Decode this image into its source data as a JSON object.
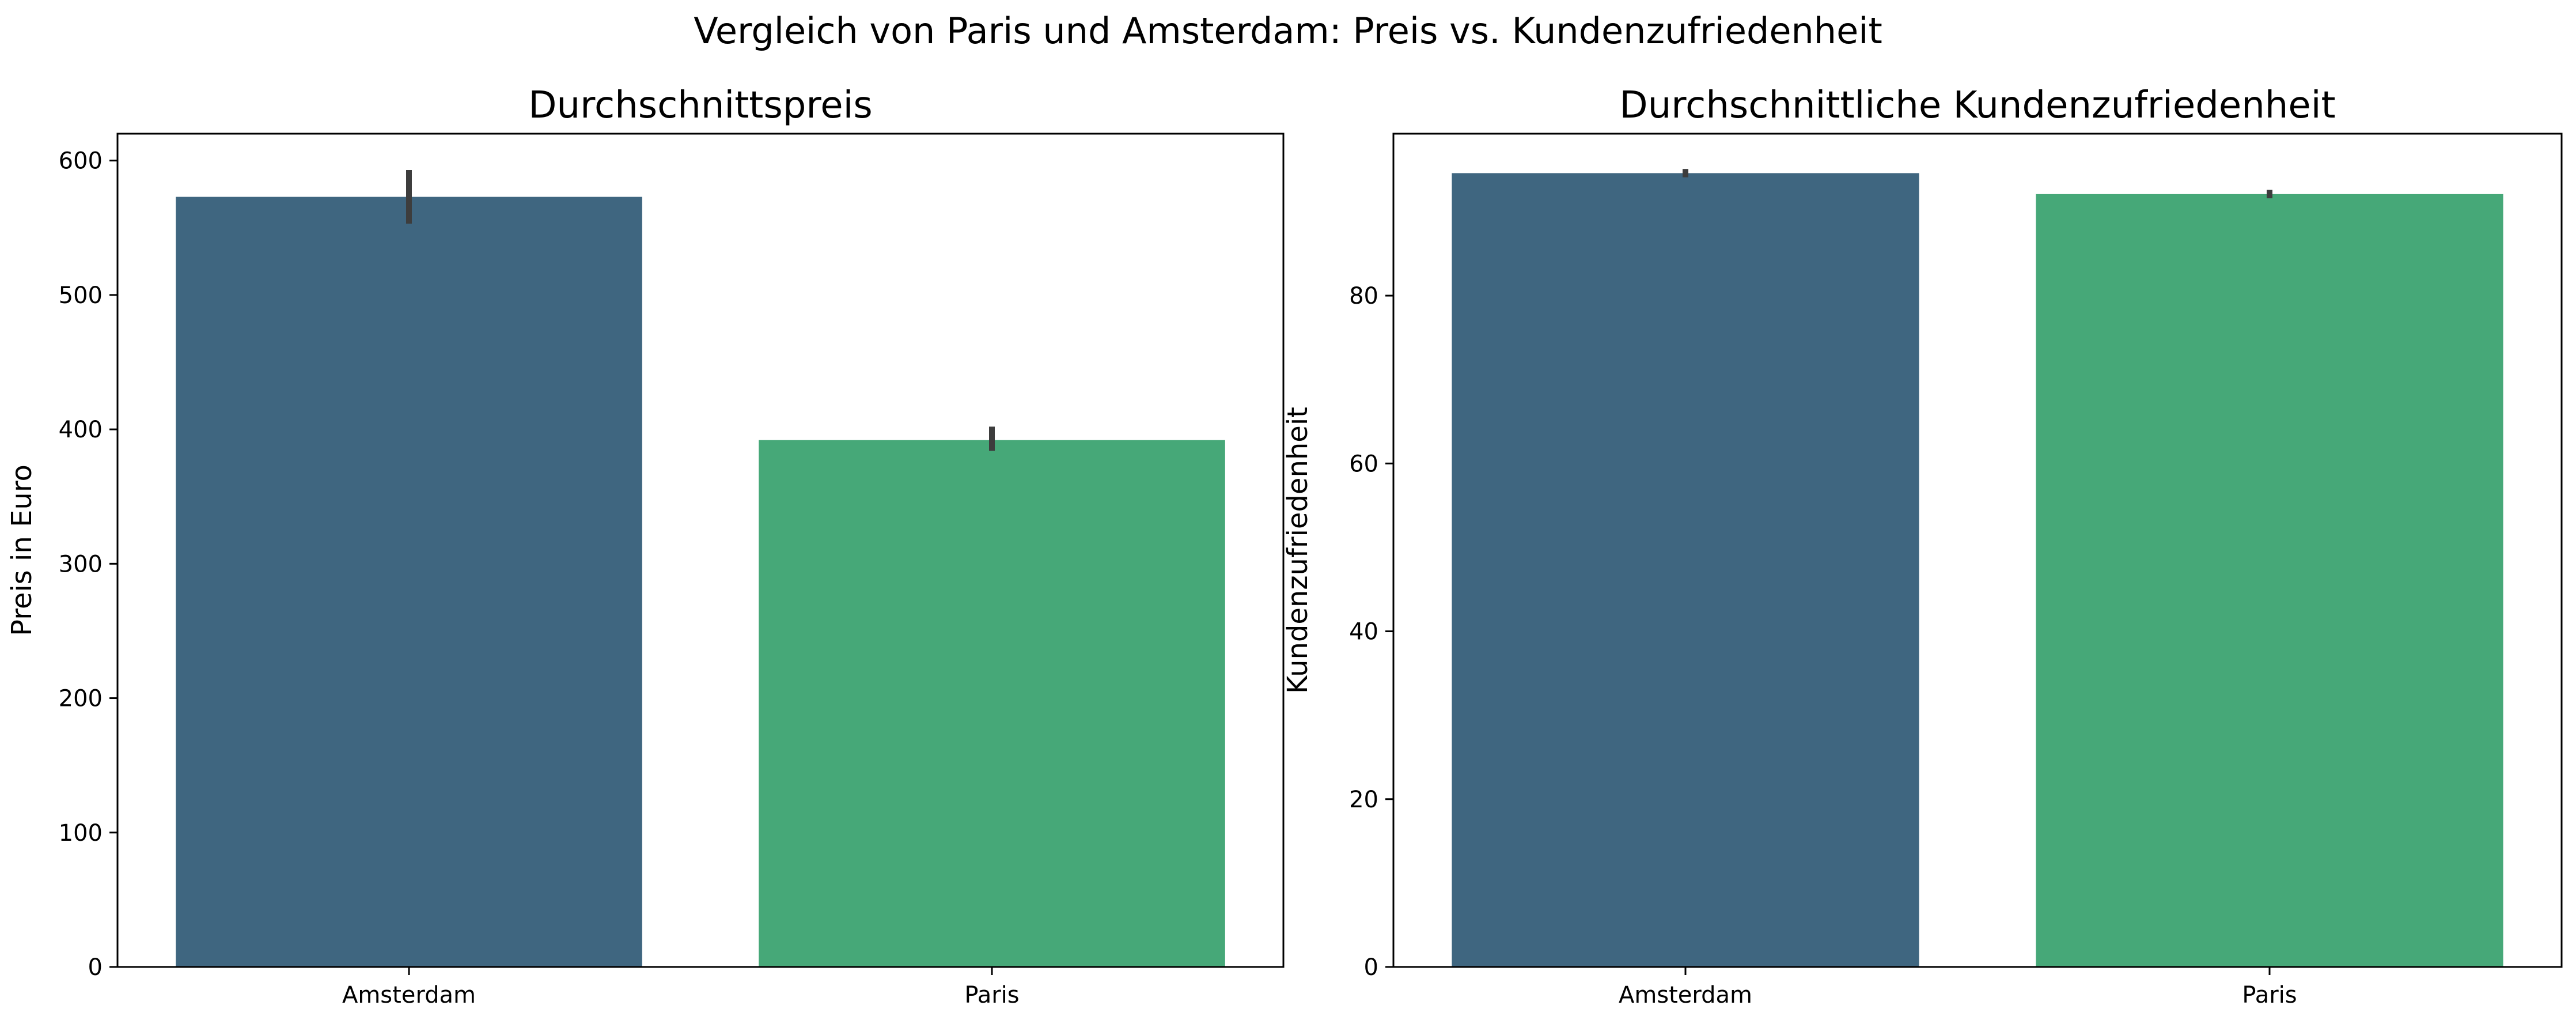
{
  "chart_data": {
    "title": "Vergleich von Paris und Amsterdam: Preis vs. Kundenzufriedenheit",
    "colors": {
      "Amsterdam": "#3f6680",
      "Paris": "#46a878",
      "errorbar": "#3d3d3d"
    },
    "panels": [
      {
        "type": "bar",
        "title": "Durchschnittspreis",
        "xlabel": "",
        "ylabel": "Preis in Euro",
        "categories": [
          "Amsterdam",
          "Paris"
        ],
        "values": [
          573,
          392
        ],
        "error_low": [
          553,
          384
        ],
        "error_high": [
          593,
          402
        ],
        "ylim": [
          0,
          620
        ],
        "yticks": [
          0,
          100,
          200,
          300,
          400,
          500,
          600
        ],
        "grid": false
      },
      {
        "type": "bar",
        "title": "Durchschnittliche Kundenzufriedenheit",
        "xlabel": "",
        "ylabel": "Kundenzufriedenheit",
        "categories": [
          "Amsterdam",
          "Paris"
        ],
        "values": [
          94.6,
          92.1
        ],
        "error_low": [
          94.1,
          91.6
        ],
        "error_high": [
          95.1,
          92.6
        ],
        "ylim": [
          0,
          99.3
        ],
        "yticks": [
          0,
          20,
          40,
          60,
          80
        ],
        "grid": false
      }
    ]
  }
}
